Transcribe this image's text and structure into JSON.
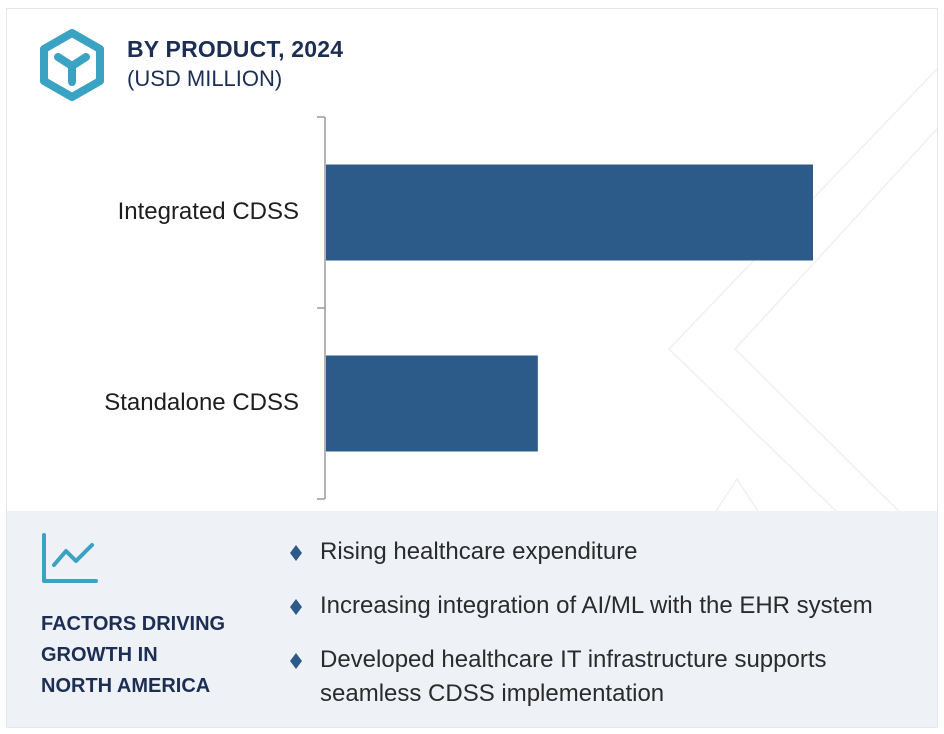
{
  "header": {
    "title": "BY PRODUCT, 2024",
    "subtitle": "(USD MILLION)",
    "icon": "cube-icon"
  },
  "colors": {
    "bar": "#2d5b89",
    "accent": "#3aa3c3",
    "heading": "#1c2e54",
    "panel_bg": "#eef1f6"
  },
  "chart_data": {
    "type": "bar",
    "orientation": "horizontal",
    "title": "BY PRODUCT, 2024",
    "subtitle": "(USD MILLION)",
    "categories": [
      "Integrated CDSS",
      "Standalone CDSS"
    ],
    "values": [
      100,
      43.5
    ],
    "xlabel": "",
    "ylabel": "",
    "xlim": [
      0,
      100
    ],
    "grid": false,
    "legend": "none"
  },
  "factors": {
    "icon": "trend-chart-icon",
    "heading_lines": [
      "FACTORS DRIVING",
      "GROWTH IN",
      "NORTH AMERICA"
    ],
    "bullet_icon": "diamond-bullet-icon",
    "items": [
      "Rising healthcare expenditure",
      "Increasing integration of AI/ML with the EHR system",
      "Developed healthcare IT infrastructure supports seamless CDSS implementation"
    ]
  }
}
